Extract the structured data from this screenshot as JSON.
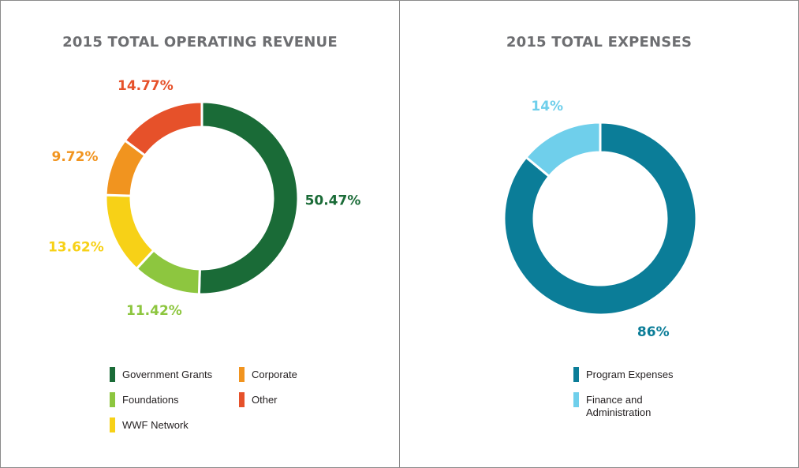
{
  "chart_data": [
    {
      "type": "pie",
      "donut": true,
      "title": "2015 TOTAL OPERATING REVENUE",
      "categories": [
        "Government Grants",
        "Foundations",
        "WWF Network",
        "Corporate",
        "Other"
      ],
      "values": [
        50.47,
        11.42,
        13.62,
        9.72,
        14.77
      ],
      "labels": [
        "50.47%",
        "11.42%",
        "13.62%",
        "9.72%",
        "14.77%"
      ],
      "colors": [
        "#1a6b37",
        "#8dc63f",
        "#f7d117",
        "#f1941f",
        "#e6512a"
      ],
      "legend": "bottom"
    },
    {
      "type": "pie",
      "donut": true,
      "title": "2015 TOTAL EXPENSES",
      "categories": [
        "Program Expenses",
        "Finance and Administration"
      ],
      "values": [
        86,
        14
      ],
      "labels": [
        "86%",
        "14%"
      ],
      "colors": [
        "#0b7d98",
        "#6fcfeb"
      ],
      "legend": "bottom"
    }
  ]
}
